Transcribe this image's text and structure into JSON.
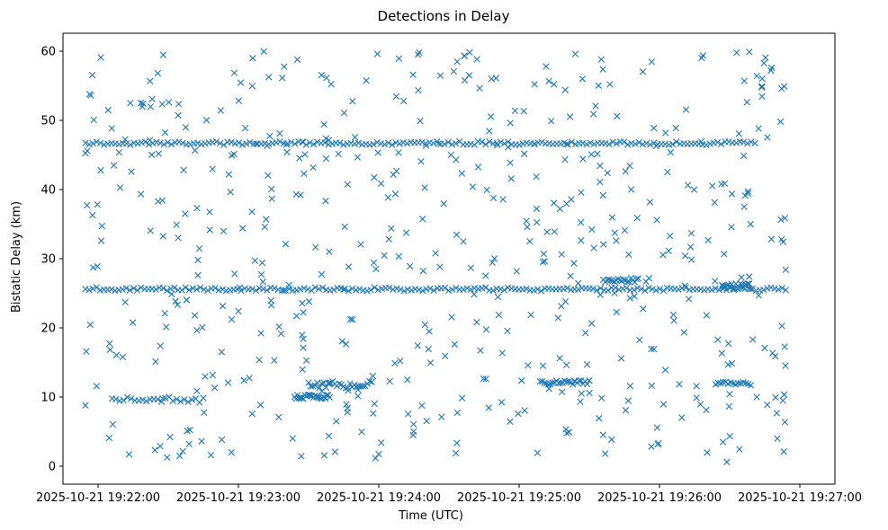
{
  "chart_data": {
    "type": "scatter",
    "title": "Detections in Delay",
    "xlabel": "Time (UTC)",
    "ylabel": "Bistatic Delay (km)",
    "xlim": [
      -0.25,
      5.25
    ],
    "ylim": [
      -2.6,
      62.6
    ],
    "x_unit": "minutes after 2025-10-21 19:22:00 UTC",
    "x_ticks": [
      {
        "value": 0,
        "label": "2025-10-21 19:22:00"
      },
      {
        "value": 1,
        "label": "2025-10-21 19:23:00"
      },
      {
        "value": 2,
        "label": "2025-10-21 19:24:00"
      },
      {
        "value": 3,
        "label": "2025-10-21 19:25:00"
      },
      {
        "value": 4,
        "label": "2025-10-21 19:26:00"
      },
      {
        "value": 5,
        "label": "2025-10-21 19:27:00"
      }
    ],
    "y_ticks": [
      {
        "value": 0,
        "label": "0"
      },
      {
        "value": 10,
        "label": "10"
      },
      {
        "value": 20,
        "label": "20"
      },
      {
        "value": 30,
        "label": "30"
      },
      {
        "value": 40,
        "label": "40"
      },
      {
        "value": 50,
        "label": "50"
      },
      {
        "value": 60,
        "label": "60"
      }
    ],
    "marker": "x",
    "color": "#1f77b4",
    "series": [
      {
        "name": "Detections",
        "bands": [
          {
            "y": 46.7,
            "x_start": -0.09,
            "x_end": 4.68,
            "density": 180,
            "jitter": 0.25
          },
          {
            "y": 45.1,
            "x_start": -0.09,
            "x_end": 4.6,
            "density": 10,
            "jitter": 0.3
          },
          {
            "y": 25.6,
            "x_start": -0.09,
            "x_end": 4.9,
            "density": 190,
            "jitter": 0.25
          },
          {
            "y": 26.9,
            "x_start": 3.6,
            "x_end": 3.85,
            "density": 20,
            "jitter": 0.3
          },
          {
            "y": 26.0,
            "x_start": 4.45,
            "x_end": 4.65,
            "density": 20,
            "jitter": 0.4
          },
          {
            "y": 9.6,
            "x_start": 0.1,
            "x_end": 0.75,
            "density": 25,
            "jitter": 0.4
          },
          {
            "y": 11.8,
            "x_start": 1.5,
            "x_end": 1.95,
            "density": 30,
            "jitter": 0.5
          },
          {
            "y": 10.0,
            "x_start": 1.4,
            "x_end": 1.65,
            "density": 25,
            "jitter": 0.3
          },
          {
            "y": 12.1,
            "x_start": 3.15,
            "x_end": 3.5,
            "density": 25,
            "jitter": 0.3
          },
          {
            "y": 12.0,
            "x_start": 4.4,
            "x_end": 4.65,
            "density": 15,
            "jitter": 0.3
          }
        ],
        "noise": {
          "count": 520,
          "x_range": [
            -0.09,
            4.9
          ],
          "y_range": [
            1,
            60
          ],
          "seed": 20251021
        },
        "points": [
          {
            "x": 0.02,
            "y": 59.1
          },
          {
            "x": 0.95,
            "y": 2.0
          },
          {
            "x": 1.42,
            "y": 58.8
          },
          {
            "x": 1.99,
            "y": 59.6
          },
          {
            "x": 2.28,
            "y": 59.5
          },
          {
            "x": 3.4,
            "y": 59.6
          },
          {
            "x": 4.55,
            "y": 59.8
          },
          {
            "x": 4.64,
            "y": 59.9
          },
          {
            "x": 4.48,
            "y": 0.6
          },
          {
            "x": 4.8,
            "y": 57.6
          },
          {
            "x": 4.87,
            "y": 54.6
          },
          {
            "x": 4.87,
            "y": 32.8
          },
          {
            "x": 4.9,
            "y": 28.4
          },
          {
            "x": -0.06,
            "y": 53.8
          },
          {
            "x": -0.09,
            "y": 8.8
          },
          {
            "x": 4.84,
            "y": 4.0
          },
          {
            "x": 4.88,
            "y": 9.5
          }
        ]
      }
    ]
  }
}
